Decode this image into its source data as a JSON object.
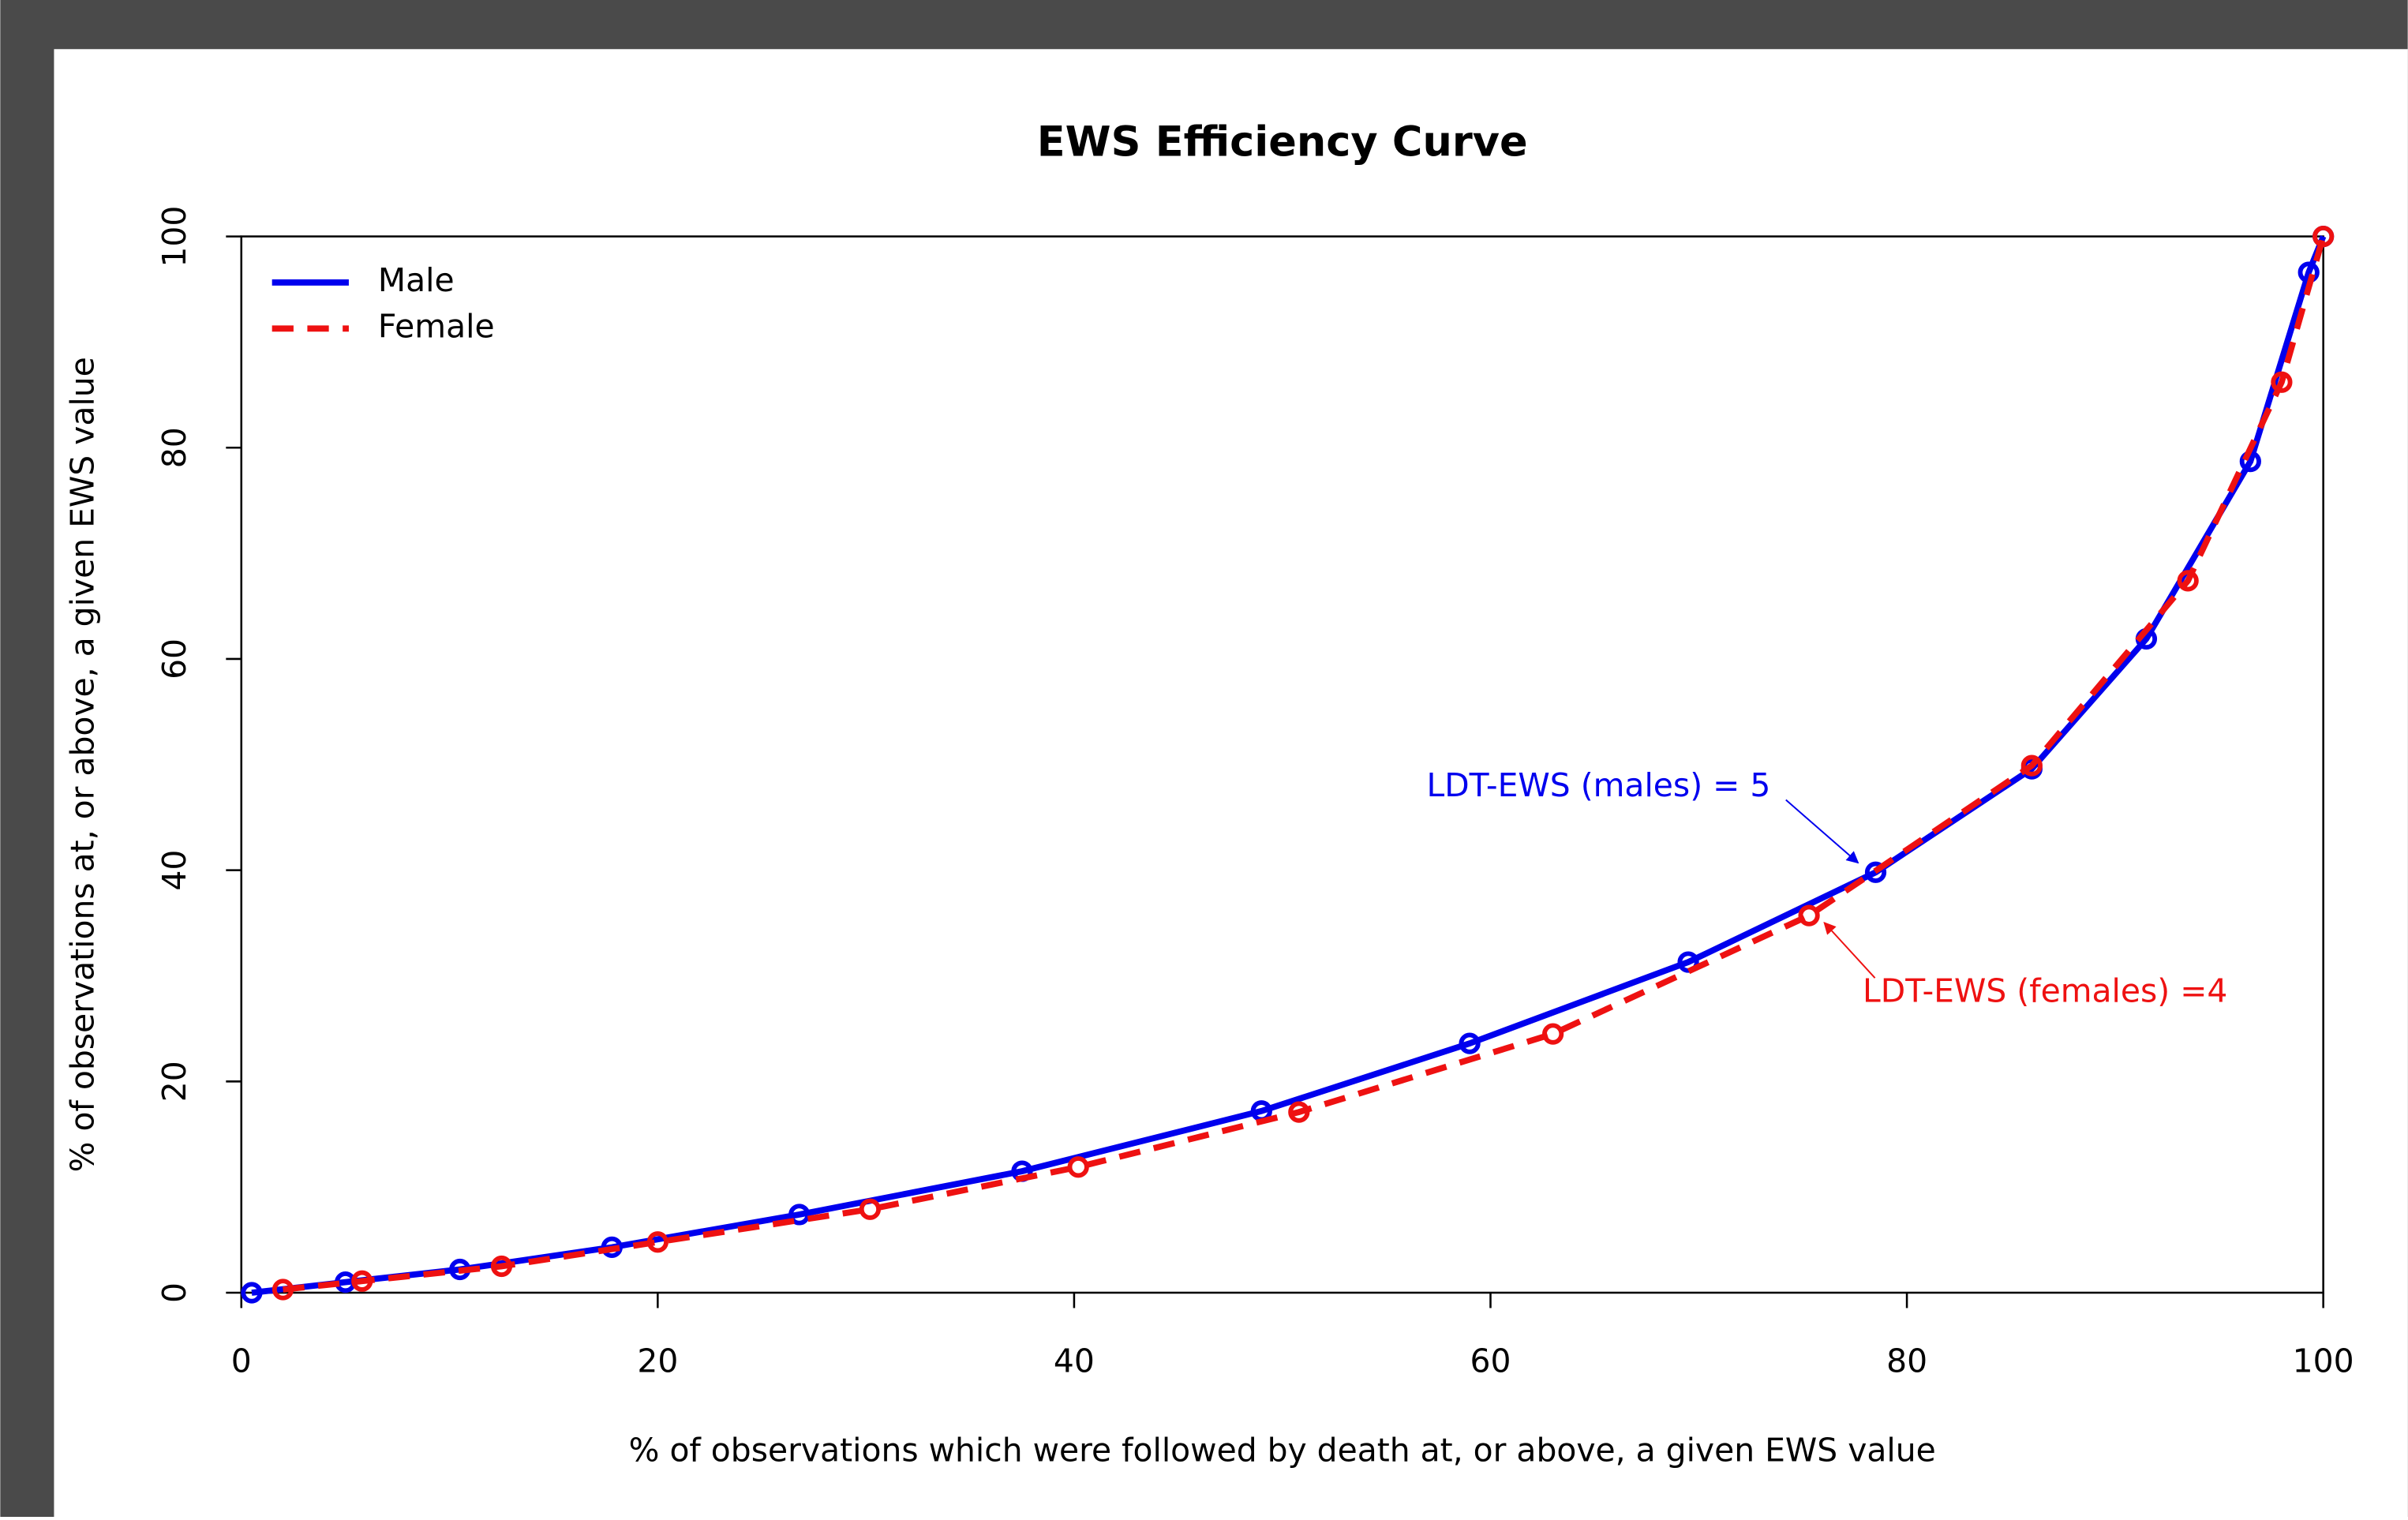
{
  "chart_data": {
    "type": "line",
    "title": "EWS Efficiency Curve",
    "x_label": "% of observations which were followed by death at, or above, a given EWS value",
    "y_label": "% of observations at, or above, a given EWS value",
    "xlim": [
      0,
      100
    ],
    "ylim": [
      0,
      100
    ],
    "xticks": [
      0,
      20,
      40,
      60,
      80,
      100
    ],
    "yticks": [
      0,
      20,
      40,
      60,
      80,
      100
    ],
    "legend": "top-left",
    "series": [
      {
        "name": "Male",
        "color": "#0000ee",
        "linestyle": "solid",
        "x": [
          0.5,
          5,
          10.5,
          17.8,
          26.8,
          37.5,
          49,
          59,
          69.5,
          78.5,
          86,
          91.5,
          96.5,
          99.3,
          100
        ],
        "values": [
          0,
          1,
          2.2,
          4.3,
          7.4,
          11.5,
          17.2,
          23.6,
          31.3,
          39.8,
          49.6,
          61.9,
          78.7,
          96.6,
          100
        ]
      },
      {
        "name": "Female",
        "color": "#ee1111",
        "linestyle": "dashed",
        "x": [
          2,
          5.8,
          12.5,
          20,
          30.2,
          40.2,
          50.8,
          63,
          75.3,
          86,
          93.5,
          98,
          100
        ],
        "values": [
          0.3,
          1.1,
          2.5,
          4.8,
          7.9,
          11.9,
          17.1,
          24.5,
          35.7,
          49.9,
          67.4,
          86.2,
          100
        ]
      }
    ],
    "annotations": [
      {
        "text": "LDT-EWS (males) = 5",
        "color": "#0000ee"
      },
      {
        "text": "LDT-EWS (females) =4",
        "color": "#ee1111"
      }
    ]
  }
}
